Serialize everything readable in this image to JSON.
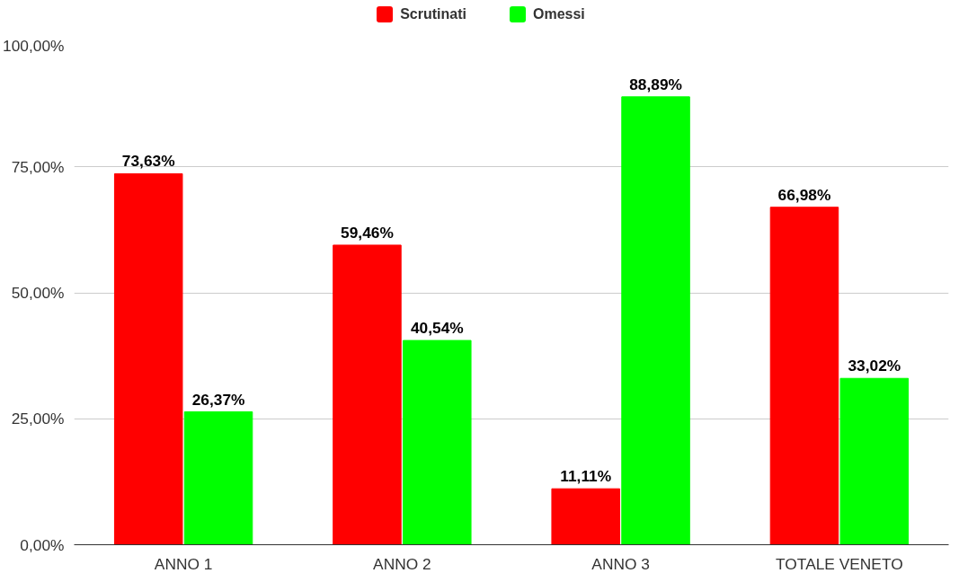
{
  "chart_data": {
    "type": "bar",
    "categories": [
      "ANNO 1",
      "ANNO 2",
      "ANNO 3",
      "TOTALE VENETO"
    ],
    "series": [
      {
        "name": "Scrutinati",
        "color": "#ff0000",
        "values": [
          73.63,
          59.46,
          11.11,
          66.98
        ],
        "value_labels": [
          "73,63%",
          "59,46%",
          "11,11%",
          "66,98%"
        ]
      },
      {
        "name": "Omessi",
        "color": "#00ff00",
        "values": [
          26.37,
          40.54,
          88.89,
          33.02
        ],
        "value_labels": [
          "26,37%",
          "40,54%",
          "88,89%",
          "33,02%"
        ]
      }
    ],
    "ylim": [
      0,
      100
    ],
    "yticks": [
      {
        "value": 0,
        "label": "0,00%"
      },
      {
        "value": 25,
        "label": "25,00%"
      },
      {
        "value": 50,
        "label": "50,00%"
      },
      {
        "value": 75,
        "label": "75,00%"
      },
      {
        "value": 100,
        "label": "100,00%"
      }
    ],
    "grid": "y",
    "legend": "top"
  }
}
